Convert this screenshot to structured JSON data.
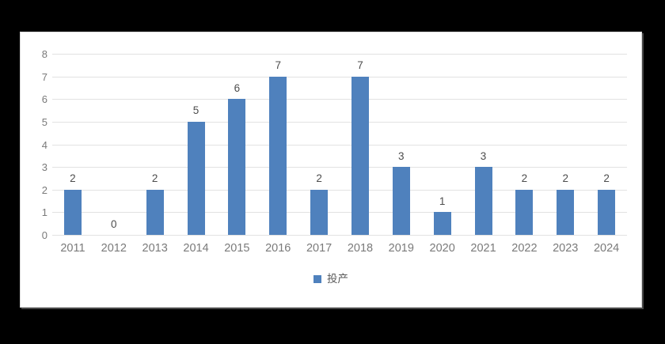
{
  "page": {
    "background_color": "#000000"
  },
  "card": {
    "background_color": "#ffffff",
    "border_color": "#d8d8d8"
  },
  "chart_data": {
    "type": "bar",
    "categories": [
      "2011",
      "2012",
      "2013",
      "2014",
      "2015",
      "2016",
      "2017",
      "2018",
      "2019",
      "2020",
      "2021",
      "2022",
      "2023",
      "2024"
    ],
    "values": [
      2,
      0,
      2,
      5,
      6,
      7,
      2,
      7,
      3,
      1,
      3,
      2,
      2,
      2
    ],
    "series_name": "投产",
    "title": "",
    "xlabel": "",
    "ylabel": "",
    "ylim": [
      0,
      8
    ],
    "ytick_step": 1,
    "yticks": [
      0,
      1,
      2,
      3,
      4,
      5,
      6,
      7,
      8
    ],
    "grid": true,
    "data_labels": true,
    "legend_position": "bottom",
    "bar_color": "#4F81BD",
    "gridline_color": "#e2e2e2",
    "tick_label_color": "#7a7a7a",
    "data_label_color": "#4d4d4d"
  },
  "legend": {
    "items": [
      {
        "label": "投产",
        "color": "#4F81BD"
      }
    ]
  }
}
